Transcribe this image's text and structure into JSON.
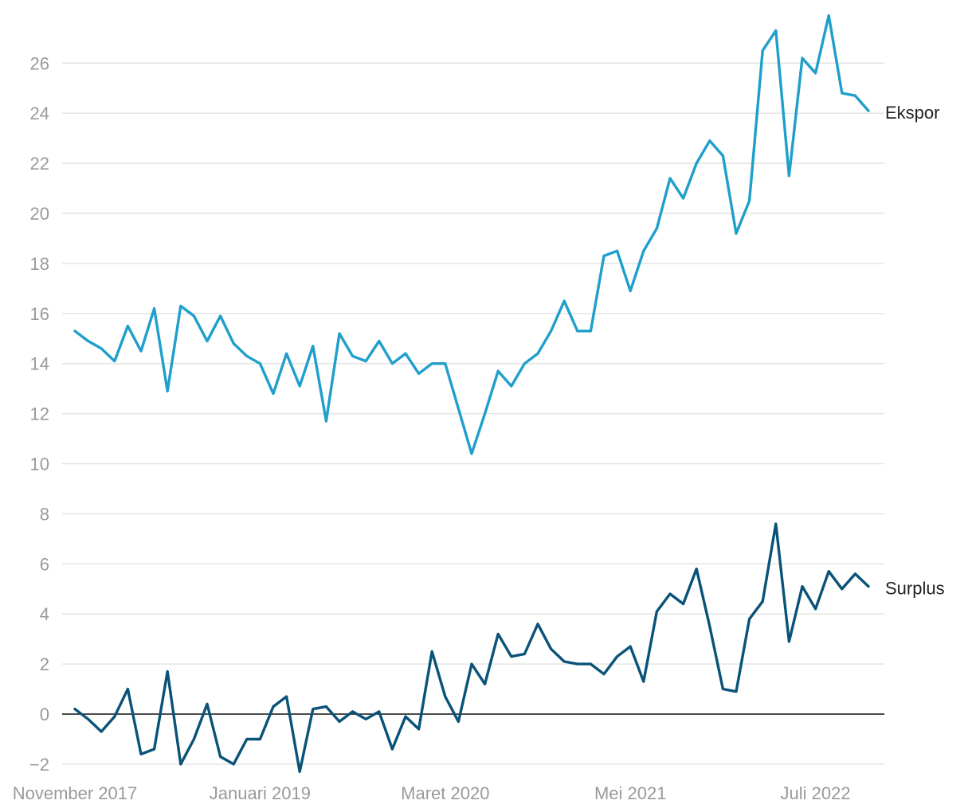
{
  "chart_data": {
    "type": "line",
    "title": "",
    "xlabel": "",
    "ylabel": "",
    "ylim": [
      -2.3,
      28
    ],
    "y_ticks": [
      -2,
      0,
      2,
      4,
      6,
      8,
      10,
      12,
      14,
      16,
      18,
      20,
      22,
      24,
      26
    ],
    "y_tick_labels": [
      "−2",
      "0",
      "2",
      "4",
      "6",
      "8",
      "10",
      "12",
      "14",
      "16",
      "18",
      "20",
      "22",
      "24",
      "26"
    ],
    "x_ticks": [
      {
        "label": "November 2017",
        "index": 0
      },
      {
        "label": "Januari 2019",
        "index": 14
      },
      {
        "label": "Maret 2020",
        "index": 28
      },
      {
        "label": "Mei 2021",
        "index": 42
      },
      {
        "label": "Juli 2022",
        "index": 56
      }
    ],
    "grid": true,
    "zero_line": true,
    "series": [
      {
        "name": "Ekspor",
        "color": "#1f9fcb",
        "values": [
          15.3,
          14.9,
          14.6,
          14.1,
          15.5,
          14.5,
          16.2,
          12.9,
          16.3,
          15.9,
          14.9,
          15.9,
          14.8,
          14.3,
          14.0,
          12.8,
          14.4,
          13.1,
          14.7,
          11.7,
          15.2,
          14.3,
          14.1,
          14.9,
          14.0,
          14.4,
          13.6,
          14.0,
          14.0,
          12.2,
          10.4,
          12.0,
          13.7,
          13.1,
          14.0,
          14.4,
          15.3,
          16.5,
          15.3,
          15.3,
          18.3,
          18.5,
          16.9,
          18.5,
          19.4,
          21.4,
          20.6,
          22.0,
          22.9,
          22.3,
          19.2,
          20.5,
          26.5,
          27.3,
          21.5,
          26.2,
          25.6,
          27.9,
          24.8,
          24.7,
          24.1
        ]
      },
      {
        "name": "Surplus",
        "color": "#0a5378",
        "values": [
          0.2,
          -0.2,
          -0.7,
          -0.1,
          1.0,
          -1.6,
          -1.4,
          1.7,
          -2.0,
          -1.0,
          0.4,
          -1.7,
          -2.0,
          -1.0,
          -1.0,
          0.3,
          0.7,
          -2.3,
          0.2,
          0.3,
          -0.3,
          0.1,
          -0.2,
          0.1,
          -1.4,
          -0.1,
          -0.6,
          2.5,
          0.7,
          -0.3,
          2.0,
          1.2,
          3.2,
          2.3,
          2.4,
          3.6,
          2.6,
          2.1,
          2.0,
          2.0,
          1.6,
          2.3,
          2.7,
          1.3,
          4.1,
          4.8,
          4.4,
          5.8,
          3.5,
          1.0,
          0.9,
          3.8,
          4.5,
          7.6,
          2.9,
          5.1,
          4.2,
          5.7,
          5.0,
          5.6,
          5.1
        ]
      }
    ]
  }
}
